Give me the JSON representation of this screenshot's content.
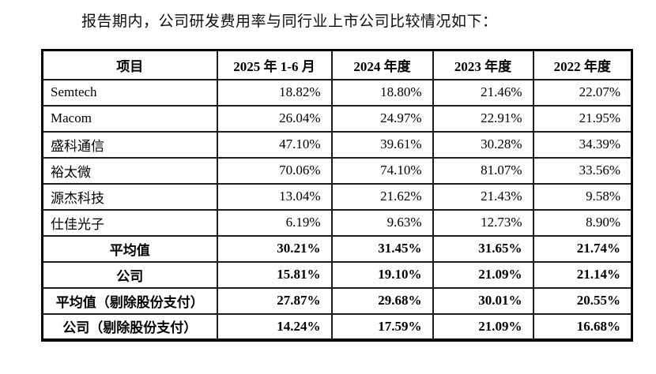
{
  "page": {
    "intro_text": "报告期内，公司研发费用率与同行业上市公司比较情况如下：",
    "background_color": "#ffffff",
    "text_color": "#000000",
    "table_border_color": "#000000"
  },
  "table": {
    "headers": [
      "项目",
      "2025 年 1-6 月",
      "2024 年度",
      "2023 年度",
      "2022 年度"
    ],
    "rows": [
      {
        "label": "Semtech",
        "values": [
          "18.82%",
          "18.80%",
          "21.46%",
          "22.07%"
        ],
        "bold": false
      },
      {
        "label": "Macom",
        "values": [
          "26.04%",
          "24.97%",
          "22.91%",
          "21.95%"
        ],
        "bold": false
      },
      {
        "label": "盛科通信",
        "values": [
          "47.10%",
          "39.61%",
          "30.28%",
          "34.39%"
        ],
        "bold": false
      },
      {
        "label": "裕太微",
        "values": [
          "70.06%",
          "74.10%",
          "81.07%",
          "33.56%"
        ],
        "bold": false
      },
      {
        "label": "源杰科技",
        "values": [
          "13.04%",
          "21.62%",
          "21.43%",
          "9.58%"
        ],
        "bold": false
      },
      {
        "label": "仕佳光子",
        "values": [
          "6.19%",
          "9.63%",
          "12.73%",
          "8.90%"
        ],
        "bold": false
      },
      {
        "label": "平均值",
        "values": [
          "30.21%",
          "31.45%",
          "31.65%",
          "21.74%"
        ],
        "bold": true
      },
      {
        "label": "公司",
        "values": [
          "15.81%",
          "19.10%",
          "21.09%",
          "21.14%"
        ],
        "bold": true
      },
      {
        "label": "平均值（剔除股份支付）",
        "values": [
          "27.87%",
          "29.68%",
          "30.01%",
          "20.55%"
        ],
        "bold": true
      },
      {
        "label": "公司（剔除股份支付）",
        "values": [
          "14.24%",
          "17.59%",
          "21.09%",
          "16.68%"
        ],
        "bold": true
      }
    ]
  }
}
